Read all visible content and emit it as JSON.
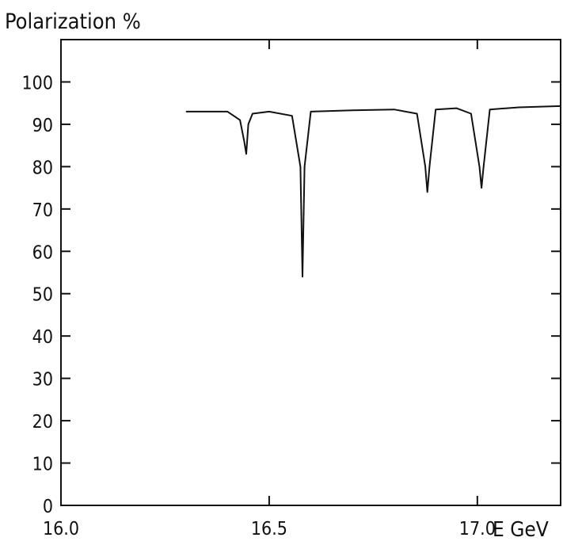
{
  "chart_data": {
    "type": "line",
    "title": "",
    "ylabel": "Polarization %",
    "xlabel": "E GeV",
    "xlim": [
      16.0,
      17.2
    ],
    "ylim": [
      0,
      110
    ],
    "x_ticks": [
      16.0,
      16.5,
      17.0
    ],
    "x_tick_labels": [
      "16.0",
      "16.5",
      "17.0"
    ],
    "y_ticks": [
      0,
      10,
      20,
      30,
      40,
      50,
      60,
      70,
      80,
      90,
      100
    ],
    "y_tick_labels": [
      "0",
      "10",
      "20",
      "30",
      "40",
      "50",
      "60",
      "70",
      "80",
      "90",
      "100"
    ],
    "grid": false,
    "series": [
      {
        "x": [
          16.3,
          16.4,
          16.43,
          16.44,
          16.445,
          16.45,
          16.46,
          16.5,
          16.555,
          16.575,
          16.58,
          16.585,
          16.6,
          16.7,
          16.8,
          16.855,
          16.875,
          16.88,
          16.885,
          16.9,
          16.95,
          16.985,
          17.005,
          17.01,
          17.015,
          17.03,
          17.1,
          17.2
        ],
        "y": [
          93,
          93,
          91,
          86,
          83,
          90,
          92.5,
          93,
          92,
          80,
          54,
          80,
          93,
          93.3,
          93.5,
          92.5,
          80,
          74,
          80,
          93.5,
          93.8,
          92.5,
          80,
          75,
          80,
          93.5,
          94,
          94.3
        ]
      }
    ]
  }
}
